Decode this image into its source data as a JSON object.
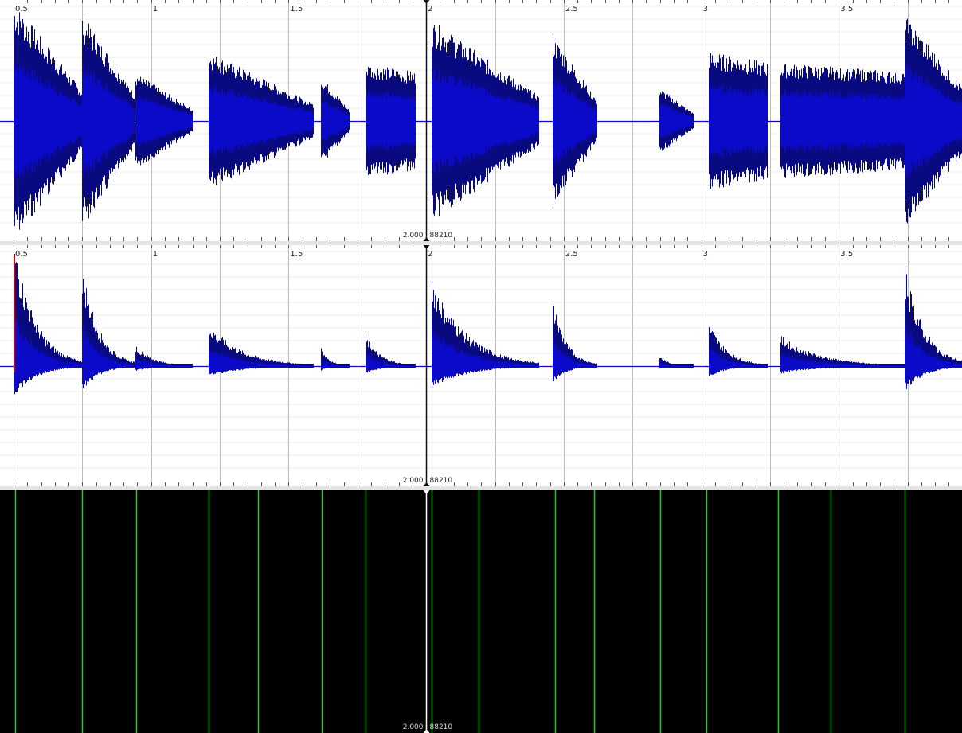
{
  "timeline": {
    "tick_labels": [
      "0.5",
      "1",
      "1.5",
      "2",
      "2.5",
      "3",
      "3.5"
    ],
    "tick_values": [
      0.5,
      1.0,
      1.5,
      2.0,
      2.5,
      3.0,
      3.5
    ],
    "view_start_seconds": 0.5,
    "view_end_seconds": 4.0
  },
  "playhead": {
    "time_label": "2.000",
    "sample_label": "88210",
    "time_seconds": 2.0
  },
  "onset_times_seconds": [
    0.505,
    0.75,
    0.945,
    1.21,
    1.39,
    1.62,
    1.78,
    2.02,
    2.19,
    2.47,
    2.61,
    2.85,
    3.02,
    3.28,
    3.47,
    3.74
  ],
  "waveform_segments": [
    {
      "start": 0.5,
      "end": 0.75,
      "amp": 0.95,
      "amp2": 0.1
    },
    {
      "start": 0.75,
      "end": 0.94,
      "amp": 0.85,
      "amp2": 0.08
    },
    {
      "start": 0.945,
      "end": 1.15,
      "amp": 0.38,
      "amp2": 0.04
    },
    {
      "start": 1.21,
      "end": 1.59,
      "amp": 0.55,
      "amp2": 0.07
    },
    {
      "start": 1.62,
      "end": 1.72,
      "amp": 0.35,
      "amp2": 0.03
    },
    {
      "start": 1.78,
      "end": 1.96,
      "amp": 0.46,
      "amp2": 0.06
    },
    {
      "start": 2.02,
      "end": 2.41,
      "amp": 0.8,
      "amp2": 0.1
    },
    {
      "start": 2.46,
      "end": 2.62,
      "amp": 0.68,
      "amp2": 0.08
    },
    {
      "start": 2.85,
      "end": 2.97,
      "amp": 0.26,
      "amp2": 0.015
    },
    {
      "start": 3.03,
      "end": 3.24,
      "amp": 0.55,
      "amp2": 0.05
    },
    {
      "start": 3.29,
      "end": 3.74,
      "amp": 0.46,
      "amp2": 0.04
    },
    {
      "start": 3.74,
      "end": 3.97,
      "amp": 0.84,
      "amp2": 0.09
    }
  ],
  "colors": {
    "waveform_outer": "#0a0a80",
    "waveform_inner": "#0a0ac8",
    "onset_line": "#22cc22",
    "beat_line": "#8a8a8a",
    "start_marker": "#cc0000",
    "pane_bg_dark": "#000000"
  }
}
